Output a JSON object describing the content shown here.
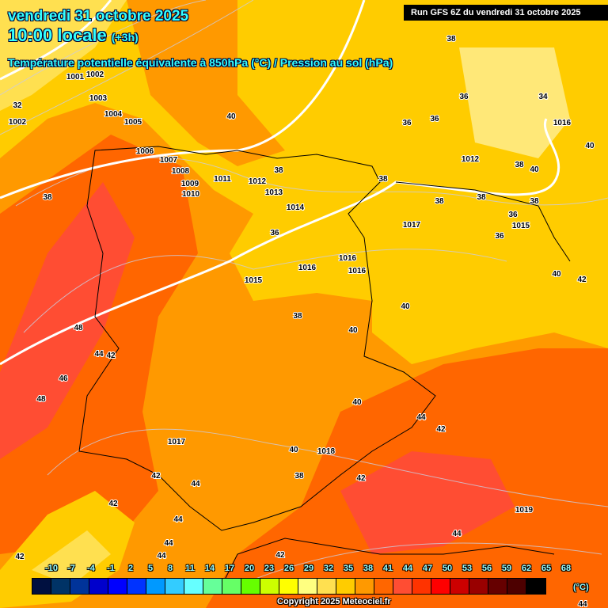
{
  "header": {
    "date": "vendredi 31 octobre 2025",
    "time": "10:00 locale",
    "offset": "(+3h)",
    "field": "Température potentielle équivalente à 850hPa (°C) / Pression au sol (hPa)",
    "run": "Run GFS 6Z du vendredi 31 octobre 2025"
  },
  "legend": {
    "unit": "(°C)",
    "ticks": [
      "-10",
      "-7",
      "-4",
      "-1",
      "2",
      "5",
      "8",
      "11",
      "14",
      "17",
      "20",
      "23",
      "26",
      "29",
      "32",
      "35",
      "38",
      "41",
      "44",
      "47",
      "50",
      "53",
      "56",
      "59",
      "62",
      "65",
      "68"
    ],
    "colors": [
      "#001040",
      "#003366",
      "#003399",
      "#0000cc",
      "#0000ff",
      "#0033ff",
      "#0099ff",
      "#33ccff",
      "#66ffff",
      "#66ff99",
      "#66ff66",
      "#66ff00",
      "#ccff00",
      "#ffff00",
      "#ffff80",
      "#ffe050",
      "#ffcc00",
      "#ff9900",
      "#ff6600",
      "#ff4d33",
      "#ff3300",
      "#ff0000",
      "#cc0000",
      "#990000",
      "#660000",
      "#4d0000",
      "#000000"
    ]
  },
  "copyright": "Copyright 2025 Meteociel.fr",
  "map_labels": [
    [
      "1001",
      95,
      72
    ],
    [
      "1002",
      120,
      93
    ],
    [
      "32",
      22,
      132
    ],
    [
      "1002",
      22,
      153
    ],
    [
      "1003",
      124,
      123
    ],
    [
      "1004",
      143,
      143
    ],
    [
      "1005",
      168,
      153
    ],
    [
      "40",
      292,
      146
    ],
    [
      "1006",
      183,
      190
    ],
    [
      "1007",
      213,
      201
    ],
    [
      "1008",
      228,
      215
    ],
    [
      "1009",
      240,
      223
    ],
    [
      "1010",
      241,
      232
    ],
    [
      "1011",
      281,
      225
    ],
    [
      "1012",
      325,
      228
    ],
    [
      "1013",
      346,
      238
    ],
    [
      "38",
      352,
      214
    ],
    [
      "1014",
      373,
      261
    ],
    [
      "36",
      347,
      293
    ],
    [
      "38",
      60,
      248
    ],
    [
      "38",
      570,
      48
    ],
    [
      "36",
      586,
      121
    ],
    [
      "36",
      514,
      154
    ],
    [
      "36",
      549,
      149
    ],
    [
      "34",
      686,
      121
    ],
    [
      "1016",
      710,
      154
    ],
    [
      "40",
      745,
      183
    ],
    [
      "1012",
      594,
      200
    ],
    [
      "38",
      656,
      207
    ],
    [
      "40",
      675,
      213
    ],
    [
      "38",
      484,
      225
    ],
    [
      "38",
      555,
      253
    ],
    [
      "38",
      608,
      248
    ],
    [
      "38",
      675,
      253
    ],
    [
      "36",
      648,
      270
    ],
    [
      "1015",
      658,
      276
    ],
    [
      "1017",
      520,
      283
    ],
    [
      "36",
      631,
      297
    ],
    [
      "1016",
      439,
      325
    ],
    [
      "1016",
      451,
      333
    ],
    [
      "1016",
      388,
      337
    ],
    [
      "1015",
      320,
      353
    ],
    [
      "40",
      703,
      345
    ],
    [
      "42",
      735,
      352
    ],
    [
      "40",
      512,
      386
    ],
    [
      "38",
      376,
      398
    ],
    [
      "40",
      446,
      416
    ],
    [
      "48",
      99,
      413
    ],
    [
      "44",
      125,
      446
    ],
    [
      "42",
      140,
      448
    ],
    [
      "46",
      80,
      477
    ],
    [
      "48",
      52,
      503
    ],
    [
      "40",
      451,
      507
    ],
    [
      "44",
      532,
      526
    ],
    [
      "42",
      557,
      541
    ],
    [
      "1017",
      223,
      557
    ],
    [
      "40",
      371,
      567
    ],
    [
      "1018",
      412,
      569
    ],
    [
      "38",
      378,
      600
    ],
    [
      "42",
      456,
      603
    ],
    [
      "42",
      197,
      600
    ],
    [
      "44",
      247,
      610
    ],
    [
      "42",
      143,
      635
    ],
    [
      "1019",
      662,
      643
    ],
    [
      "44",
      225,
      655
    ],
    [
      "44",
      213,
      685
    ],
    [
      "44",
      204,
      705
    ],
    [
      "44",
      577,
      673
    ],
    [
      "42",
      354,
      704
    ],
    [
      "42",
      25,
      702
    ],
    [
      "44",
      736,
      762
    ]
  ]
}
